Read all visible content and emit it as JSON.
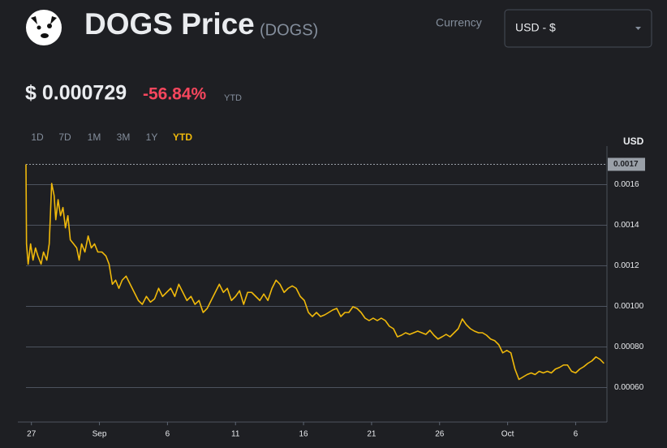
{
  "header": {
    "title": "DOGS Price",
    "symbol": "(DOGS)",
    "price": "$ 0.000729",
    "change": "-56.84%",
    "period": "YTD"
  },
  "currency": {
    "label": "Currency",
    "selected": "USD - $"
  },
  "ranges": [
    "1D",
    "7D",
    "1M",
    "3M",
    "1Y",
    "YTD"
  ],
  "active_range": 5,
  "chart_data": {
    "type": "line",
    "y_axis_label": "USD",
    "color": "#f0b90b",
    "marker": 0.0017,
    "xlim": [
      -0.4,
      42.3
    ],
    "xticks": [
      {
        "value": 0,
        "label": "27"
      },
      {
        "value": 5,
        "label": "Sep"
      },
      {
        "value": 10,
        "label": "6"
      },
      {
        "value": 15,
        "label": "11"
      },
      {
        "value": 20,
        "label": "16"
      },
      {
        "value": 25,
        "label": "21"
      },
      {
        "value": 30,
        "label": "26"
      },
      {
        "value": 35,
        "label": "Oct"
      },
      {
        "value": 40,
        "label": "6"
      }
    ],
    "ylim": [
      0.00043,
      0.00171
    ],
    "yticks": [
      {
        "value": 0.0006,
        "label": "0.00060"
      },
      {
        "value": 0.0008,
        "label": "0.00080"
      },
      {
        "value": 0.001,
        "label": "0.00100"
      },
      0.0012,
      0.0014,
      0.0016
    ],
    "x": [
      -0.4,
      -0.36,
      -0.24,
      -0.06,
      0.12,
      0.3,
      0.48,
      0.71,
      0.89,
      1.13,
      1.31,
      1.49,
      1.67,
      1.79,
      1.96,
      2.14,
      2.32,
      2.5,
      2.68,
      2.86,
      3.1,
      3.33,
      3.51,
      3.69,
      3.93,
      4.17,
      4.4,
      4.64,
      4.88,
      5.18,
      5.48,
      5.71,
      5.95,
      6.19,
      6.43,
      6.67,
      6.96,
      7.26,
      7.56,
      7.86,
      8.15,
      8.45,
      8.75,
      9.05,
      9.35,
      9.64,
      9.94,
      10.24,
      10.54,
      10.83,
      11.13,
      11.43,
      11.73,
      12.02,
      12.32,
      12.62,
      12.92,
      13.21,
      13.51,
      13.81,
      14.11,
      14.4,
      14.7,
      15.0,
      15.3,
      15.6,
      15.89,
      16.19,
      16.49,
      16.79,
      17.08,
      17.38,
      17.68,
      17.98,
      18.27,
      18.57,
      18.87,
      19.17,
      19.46,
      19.76,
      20.06,
      20.36,
      20.65,
      20.95,
      21.25,
      21.55,
      21.85,
      22.14,
      22.44,
      22.74,
      23.04,
      23.33,
      23.63,
      23.93,
      24.23,
      24.52,
      24.82,
      25.12,
      25.42,
      25.71,
      26.01,
      26.31,
      26.61,
      26.9,
      27.2,
      27.5,
      27.8,
      28.1,
      28.39,
      28.69,
      28.99,
      29.29,
      29.58,
      29.88,
      30.18,
      30.48,
      30.77,
      31.07,
      31.37,
      31.67,
      31.96,
      32.26,
      32.56,
      32.86,
      33.15,
      33.45,
      33.75,
      34.05,
      34.35,
      34.64,
      34.94,
      35.24,
      35.54,
      35.83,
      36.13,
      36.43,
      36.73,
      37.02,
      37.32,
      37.62,
      37.92,
      38.21,
      38.51,
      38.81,
      39.11,
      39.4,
      39.7,
      40.0,
      40.3,
      40.6,
      40.89,
      41.19,
      41.49,
      41.79,
      42.08
    ],
    "values": [
      0.0017,
      0.001308,
      0.001208,
      0.001308,
      0.001228,
      0.001288,
      0.001248,
      0.001208,
      0.001268,
      0.001228,
      0.001308,
      0.001606,
      0.001546,
      0.001427,
      0.001526,
      0.001447,
      0.001487,
      0.001387,
      0.001447,
      0.001328,
      0.001308,
      0.001288,
      0.001228,
      0.001308,
      0.001268,
      0.001347,
      0.001288,
      0.001308,
      0.001268,
      0.001268,
      0.001248,
      0.001208,
      0.001109,
      0.001129,
      0.001089,
      0.001129,
      0.001149,
      0.001109,
      0.001069,
      0.001029,
      0.00101,
      0.001049,
      0.001021,
      0.001037,
      0.001089,
      0.001049,
      0.001069,
      0.001089,
      0.001049,
      0.001109,
      0.001069,
      0.001029,
      0.001049,
      0.00101,
      0.001029,
      0.00097,
      0.00099,
      0.001029,
      0.001069,
      0.001109,
      0.001069,
      0.001089,
      0.001029,
      0.001049,
      0.001077,
      0.00101,
      0.001069,
      0.001069,
      0.001049,
      0.001029,
      0.001061,
      0.001029,
      0.001089,
      0.001129,
      0.001109,
      0.001069,
      0.001089,
      0.001101,
      0.001089,
      0.001049,
      0.001029,
      0.00097,
      0.00095,
      0.00097,
      0.00095,
      0.000958,
      0.00097,
      0.000982,
      0.00099,
      0.00095,
      0.00097,
      0.00097,
      0.000998,
      0.00099,
      0.00097,
      0.000942,
      0.00093,
      0.000942,
      0.00093,
      0.000942,
      0.00093,
      0.000902,
      0.00089,
      0.00085,
      0.000858,
      0.00087,
      0.000862,
      0.00087,
      0.000878,
      0.00087,
      0.000862,
      0.000882,
      0.000858,
      0.000839,
      0.00085,
      0.000862,
      0.00085,
      0.00087,
      0.00089,
      0.000938,
      0.00091,
      0.00089,
      0.000878,
      0.00087,
      0.00087,
      0.000858,
      0.000839,
      0.000831,
      0.000811,
      0.000771,
      0.000783,
      0.000771,
      0.000691,
      0.00064,
      0.000652,
      0.000664,
      0.000672,
      0.000664,
      0.00068,
      0.000672,
      0.00068,
      0.000672,
      0.000691,
      0.000699,
      0.000711,
      0.000711,
      0.00068,
      0.000672,
      0.000691,
      0.000703,
      0.000719,
      0.000731,
      0.000751,
      0.000739,
      0.000719
    ]
  }
}
